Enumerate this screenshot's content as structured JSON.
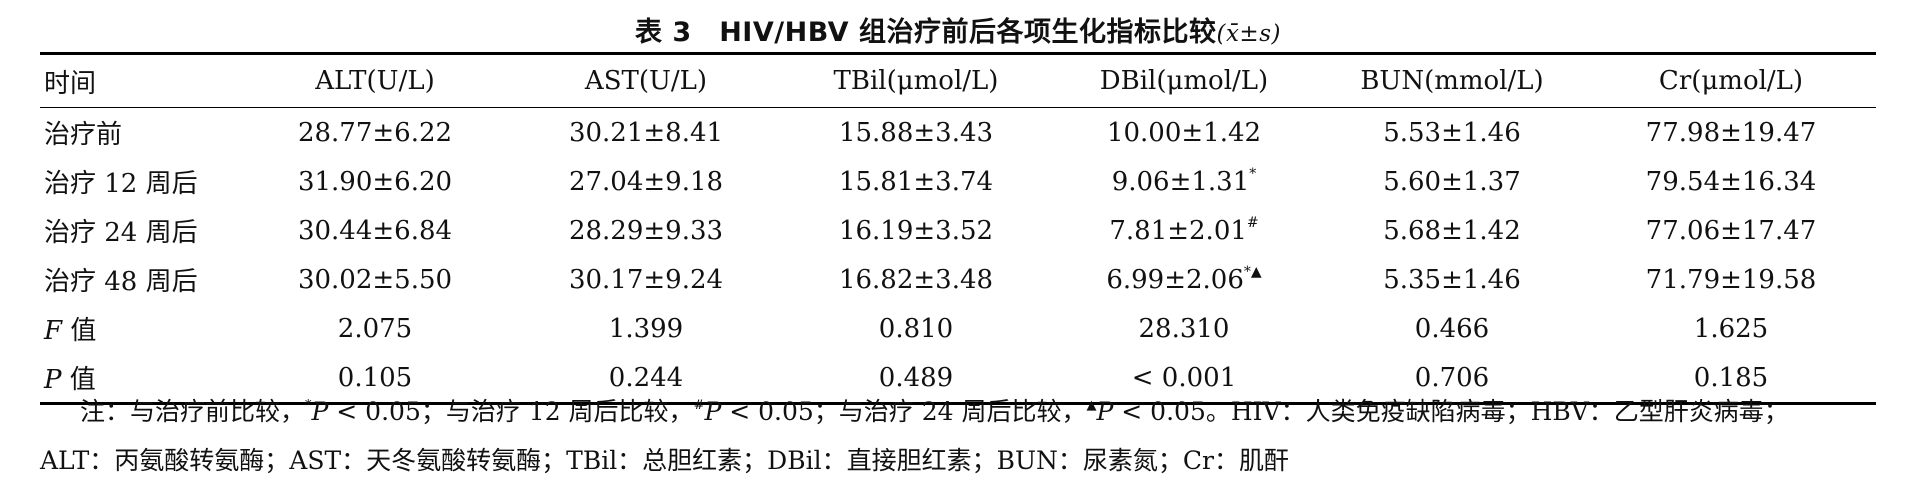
{
  "title": {
    "text": "表 3　HIV/HBV 组治疗前后各项生化指标比较",
    "stat": "(x̄±s)"
  },
  "table": {
    "headers": [
      "时间",
      "ALT(U/L)",
      "AST(U/L)",
      "TBil(μmol/L)",
      "DBil(μmol/L)",
      "BUN(mmol/L)",
      "Cr(μmol/L)"
    ],
    "rows": [
      {
        "label": "治疗前",
        "alt": "28.77±6.22",
        "ast": "30.21±8.41",
        "tbil": "15.88±3.43",
        "dbil": "10.00±1.42",
        "dbil_mark": "",
        "bun": "5.53±1.46",
        "cr": "77.98±19.47"
      },
      {
        "label": "治疗 12 周后",
        "alt": "31.90±6.20",
        "ast": "27.04±9.18",
        "tbil": "15.81±3.74",
        "dbil": "9.06±1.31",
        "dbil_mark": "*",
        "bun": "5.60±1.37",
        "cr": "79.54±16.34"
      },
      {
        "label": "治疗 24 周后",
        "alt": "30.44±6.84",
        "ast": "28.29±9.33",
        "tbil": "16.19±3.52",
        "dbil": "7.81±2.01",
        "dbil_mark": "#",
        "bun": "5.68±1.42",
        "cr": "77.06±17.47"
      },
      {
        "label": "治疗 48 周后",
        "alt": "30.02±5.50",
        "ast": "30.17±9.24",
        "tbil": "16.82±3.48",
        "dbil": "6.99±2.06",
        "dbil_mark": "*▲",
        "bun": "5.35±1.46",
        "cr": "71.79±19.58"
      }
    ],
    "f_row": {
      "symbol": "F",
      "label": "值",
      "alt": "2.075",
      "ast": "1.399",
      "tbil": "0.810",
      "dbil": "28.310",
      "bun": "0.466",
      "cr": "1.625"
    },
    "p_row": {
      "symbol": "P",
      "label": "值",
      "alt": "0.105",
      "ast": "0.244",
      "tbil": "0.489",
      "dbil": "< 0.001",
      "bun": "0.706",
      "cr": "0.185"
    }
  },
  "note": {
    "prefix": "注：与治疗前比较，",
    "m1": "*",
    "p1": "P",
    "t1": " < 0.05；与治疗 12 周后比较，",
    "m2": "#",
    "p2": "P",
    "t2": " < 0.05；与治疗 24 周后比较，",
    "m3": "▲",
    "p3": "P",
    "t3": " < 0.05。HIV：人类免疫缺陷病毒；HBV：乙型肝炎病毒；",
    "line2": "ALT：丙氨酸转氨酶；AST：天冬氨酸转氨酶；TBil：总胆红素；DBil：直接胆红素；BUN：尿素氮；Cr：肌酐"
  }
}
